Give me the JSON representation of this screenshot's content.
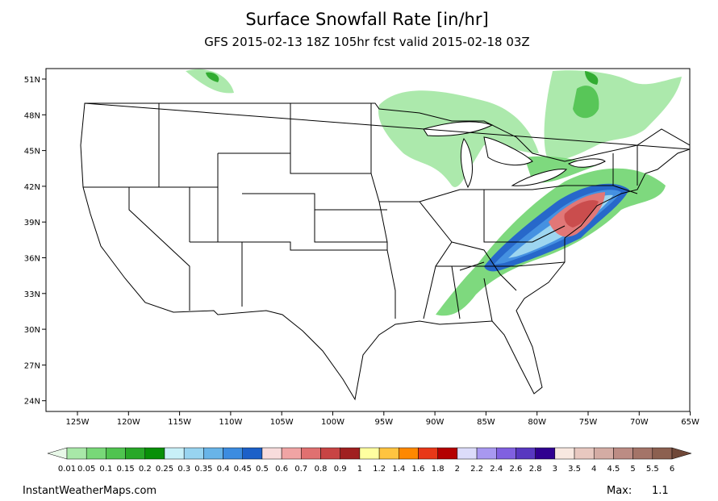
{
  "header": {
    "title": "Surface Snowfall Rate [in/hr]",
    "subtitle": "GFS 2015-02-13 18Z 105hr fcst valid 2015-02-18 03Z"
  },
  "map": {
    "lat_labels": [
      "51N",
      "48N",
      "45N",
      "42N",
      "39N",
      "36N",
      "33N",
      "30N",
      "27N",
      "24N"
    ],
    "lon_labels": [
      "125W",
      "120W",
      "115W",
      "110W",
      "105W",
      "100W",
      "95W",
      "90W",
      "85W",
      "80W",
      "75W",
      "70W",
      "65W"
    ]
  },
  "colorbar": {
    "labels": [
      "0.01",
      "0.05",
      "0.1",
      "0.15",
      "0.2",
      "0.25",
      "0.3",
      "0.35",
      "0.4",
      "0.45",
      "0.5",
      "0.6",
      "0.7",
      "0.8",
      "0.9",
      "1",
      "1.2",
      "1.4",
      "1.6",
      "1.8",
      "2",
      "2.2",
      "2.4",
      "2.6",
      "2.8",
      "3",
      "3.5",
      "4",
      "4.5",
      "5",
      "5.5",
      "6"
    ],
    "colors": [
      "#e8f8e8",
      "#a8e8a8",
      "#78d878",
      "#50c450",
      "#28a828",
      "#089008",
      "#c8f0f8",
      "#98d4f0",
      "#68b4e8",
      "#3c8ce0",
      "#1c60c8",
      "#f8dcdc",
      "#f0a4a4",
      "#e07070",
      "#c84444",
      "#a02020",
      "#ffffa0",
      "#ffc440",
      "#ff8800",
      "#e83818",
      "#b40000",
      "#dcdcfa",
      "#a898f0",
      "#8060e0",
      "#5838c0",
      "#300090",
      "#f8e8e0",
      "#e8c8c0",
      "#d4aca4",
      "#bc8c84",
      "#a47468",
      "#8c6050",
      "#704838"
    ]
  },
  "footer": {
    "source": "InstantWeatherMaps.com",
    "max_label": "Max:",
    "max_value": "1.1"
  }
}
